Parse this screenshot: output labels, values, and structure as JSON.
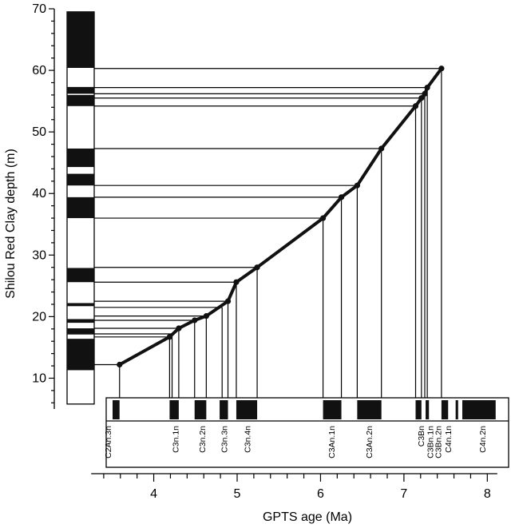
{
  "chart_data": {
    "type": "line",
    "xlabel": "GPTS age (Ma)",
    "ylabel": "Shilou Red Clay depth (m)",
    "xlim": [
      3.2,
      8.15
    ],
    "ylim": [
      5,
      70
    ],
    "x_ticks": [
      4,
      5,
      6,
      7,
      8
    ],
    "x_minor_step": 0.2,
    "y_ticks": [
      10,
      20,
      30,
      40,
      50,
      60,
      70
    ],
    "series": [
      {
        "points": [
          {
            "age": 3.59,
            "depth": 12.2
          },
          {
            "age": 4.19,
            "depth": 16.7
          },
          {
            "age": 4.3,
            "depth": 18.1
          },
          {
            "age": 4.49,
            "depth": 19.4
          },
          {
            "age": 4.63,
            "depth": 20.1
          },
          {
            "age": 4.89,
            "depth": 22.5
          },
          {
            "age": 4.99,
            "depth": 25.6
          },
          {
            "age": 5.24,
            "depth": 28.0
          },
          {
            "age": 6.03,
            "depth": 36.0
          },
          {
            "age": 6.25,
            "depth": 39.4
          },
          {
            "age": 6.44,
            "depth": 41.3
          },
          {
            "age": 6.73,
            "depth": 47.3
          },
          {
            "age": 7.14,
            "depth": 54.2
          },
          {
            "age": 7.21,
            "depth": 55.5
          },
          {
            "age": 7.25,
            "depth": 56.2
          },
          {
            "age": 7.28,
            "depth": 57.2
          },
          {
            "age": 7.45,
            "depth": 60.3
          }
        ]
      }
    ],
    "extra_ties": [
      {
        "depth": 21.5,
        "age": 4.82
      },
      {
        "depth": 17.2,
        "age": 4.22
      }
    ],
    "depth_column_normal": [
      [
        11.3,
        16.4
      ],
      [
        17.1,
        18.1
      ],
      [
        19.0,
        19.6
      ],
      [
        21.7,
        22.2
      ],
      [
        25.6,
        27.9
      ],
      [
        36.0,
        39.4
      ],
      [
        41.3,
        43.2
      ],
      [
        44.3,
        47.3
      ],
      [
        54.2,
        56.0
      ],
      [
        56.2,
        57.3
      ],
      [
        60.4,
        69.5
      ]
    ],
    "gpts_normal": [
      [
        3.3,
        3.59
      ],
      [
        4.19,
        4.3
      ],
      [
        4.49,
        4.63
      ],
      [
        4.79,
        4.89
      ],
      [
        4.99,
        5.24
      ],
      [
        6.03,
        6.25
      ],
      [
        6.44,
        6.73
      ],
      [
        7.14,
        7.21
      ],
      [
        7.26,
        7.3
      ],
      [
        7.45,
        7.53
      ],
      [
        7.62,
        7.65
      ],
      [
        7.7,
        8.1
      ]
    ],
    "chron_labels": [
      {
        "text": "C2An.3n",
        "age": 3.45
      },
      {
        "text": "C3n.1n",
        "age": 4.26
      },
      {
        "text": "C3n.2n",
        "age": 4.58
      },
      {
        "text": "C3n.3n",
        "age": 4.84
      },
      {
        "text": "C3n.4n",
        "age": 5.12
      },
      {
        "text": "C3An.1n",
        "age": 6.13
      },
      {
        "text": "C3An.2n",
        "age": 6.58
      },
      {
        "text": "C3Bn",
        "age": 7.2
      },
      {
        "text": "C3Bn.1n",
        "age": 7.31
      },
      {
        "text": "C3Bn.2n",
        "age": 7.41
      },
      {
        "text": "C4n.1n",
        "age": 7.53
      },
      {
        "text": "C4n.2n",
        "age": 7.94
      }
    ],
    "grid": false,
    "legend": "none"
  }
}
